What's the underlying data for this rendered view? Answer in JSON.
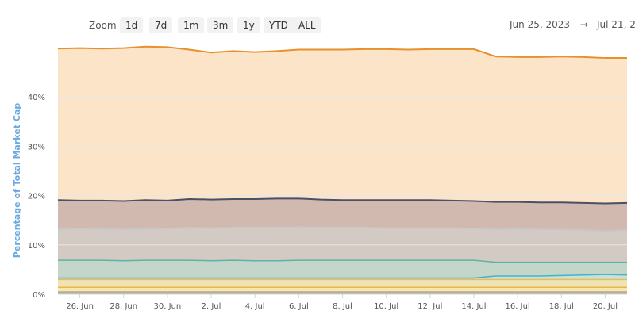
{
  "toolbar": {
    "zoom_label": "Zoom",
    "buttons": [
      "1d",
      "7d",
      "1m",
      "3m",
      "1y",
      "YTD",
      "ALL"
    ],
    "date_from": "Jun 25, 2023",
    "arrow": "→",
    "date_to": "Jul 21, 2"
  },
  "chart_data": {
    "type": "area",
    "stacked": true,
    "ylabel": "Percentage of Total Market Cap",
    "ylim": [
      0,
      50
    ],
    "y_ticks": [
      "0%",
      "10%",
      "20%",
      "30%",
      "40%"
    ],
    "x_ticks": [
      "26. Jun",
      "28. Jun",
      "30. Jun",
      "2. Jul",
      "4. Jul",
      "6. Jul",
      "8. Jul",
      "10. Jul",
      "12. Jul",
      "14. Jul",
      "16. Jul",
      "18. Jul",
      "20. Jul"
    ],
    "grid": true,
    "x_dates": [
      "Jun 25",
      "Jun 26",
      "Jun 27",
      "Jun 28",
      "Jun 29",
      "Jun 30",
      "Jul 1",
      "Jul 2",
      "Jul 3",
      "Jul 4",
      "Jul 5",
      "Jul 6",
      "Jul 7",
      "Jul 8",
      "Jul 9",
      "Jul 10",
      "Jul 11",
      "Jul 12",
      "Jul 13",
      "Jul 14",
      "Jul 15",
      "Jul 16",
      "Jul 17",
      "Jul 18",
      "Jul 19",
      "Jul 20",
      "Jul 21"
    ],
    "series": [
      {
        "color": "#e8b84a",
        "fill": "#f6e6b0",
        "values": [
          1.4,
          1.4,
          1.4,
          1.4,
          1.4,
          1.4,
          1.4,
          1.4,
          1.4,
          1.4,
          1.4,
          1.4,
          1.4,
          1.4,
          1.4,
          1.4,
          1.4,
          1.4,
          1.4,
          1.4,
          1.4,
          1.4,
          1.4,
          1.4,
          1.4,
          1.4,
          1.4
        ]
      },
      {
        "color": "#e0c060",
        "fill": "#efe2b4",
        "values": [
          1.6,
          1.6,
          1.6,
          1.6,
          1.6,
          1.6,
          1.6,
          1.6,
          1.6,
          1.6,
          1.6,
          1.6,
          1.6,
          1.6,
          1.6,
          1.6,
          1.6,
          1.6,
          1.6,
          1.6,
          1.6,
          1.6,
          1.6,
          1.6,
          1.6,
          1.6,
          1.6
        ]
      },
      {
        "color": "#4ab0c8",
        "fill": "#c9e2d6",
        "values": [
          0.3,
          0.3,
          0.3,
          0.3,
          0.3,
          0.3,
          0.3,
          0.3,
          0.3,
          0.3,
          0.3,
          0.3,
          0.3,
          0.3,
          0.3,
          0.3,
          0.3,
          0.3,
          0.3,
          0.3,
          0.7,
          0.7,
          0.7,
          0.8,
          0.9,
          1.0,
          0.9
        ]
      },
      {
        "color": "#5eb3a6",
        "fill": "#c4d6c9",
        "values": [
          3.6,
          3.6,
          3.6,
          3.5,
          3.6,
          3.6,
          3.6,
          3.5,
          3.6,
          3.5,
          3.5,
          3.6,
          3.6,
          3.6,
          3.6,
          3.6,
          3.6,
          3.6,
          3.6,
          3.6,
          2.8,
          2.8,
          2.8,
          2.7,
          2.6,
          2.5,
          2.6
        ]
      },
      {
        "color": "#c8c8c8",
        "fill": "#d4cac4",
        "values": [
          6.3,
          6.4,
          6.3,
          6.3,
          6.3,
          6.4,
          6.6,
          6.6,
          6.6,
          6.7,
          6.7,
          6.7,
          6.6,
          6.6,
          6.6,
          6.5,
          6.5,
          6.5,
          6.5,
          6.4,
          6.6,
          6.7,
          6.6,
          6.6,
          6.5,
          6.3,
          6.5
        ]
      },
      {
        "color": "#4a5068",
        "fill": "#d2b9b0",
        "values": [
          5.9,
          5.7,
          5.8,
          5.8,
          5.9,
          5.7,
          5.8,
          5.8,
          5.8,
          5.8,
          5.9,
          5.8,
          5.7,
          5.6,
          5.6,
          5.7,
          5.7,
          5.7,
          5.6,
          5.6,
          5.6,
          5.5,
          5.5,
          5.5,
          5.5,
          5.6,
          5.5
        ]
      },
      {
        "color": "#e8902e",
        "fill": "#fce4c8",
        "values": [
          30.7,
          30.9,
          30.8,
          31.0,
          31.1,
          31.1,
          30.3,
          29.8,
          30.0,
          29.8,
          29.9,
          30.2,
          30.4,
          30.5,
          30.6,
          30.6,
          30.5,
          30.6,
          30.7,
          30.8,
          29.5,
          29.4,
          29.5,
          29.6,
          29.6,
          29.5,
          29.4
        ]
      }
    ]
  }
}
